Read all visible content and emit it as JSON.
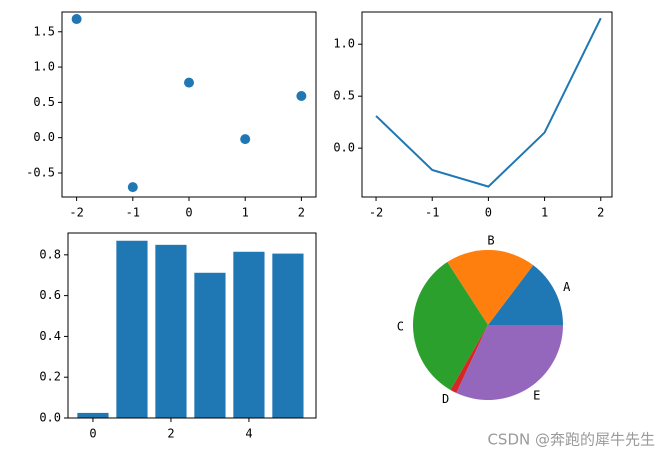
{
  "chart_data": [
    {
      "type": "scatter",
      "x": [
        -2,
        -1,
        0,
        1,
        2
      ],
      "values": [
        1.68,
        -0.7,
        0.78,
        -0.02,
        0.59
      ],
      "color": "#1f77b4",
      "xlim": [
        -2.26,
        2.26
      ],
      "ylim": [
        -0.84,
        1.78
      ],
      "xticks": [
        -2,
        -1,
        0,
        1,
        2
      ],
      "yticks": [
        -0.5,
        {
          "value": 0,
          "label": "0.0"
        },
        0.5,
        {
          "value": 1,
          "label": "1.0"
        },
        1.5
      ]
    },
    {
      "type": "line",
      "x": [
        -2,
        -1,
        0,
        1,
        2
      ],
      "values": [
        0.31,
        -0.21,
        -0.37,
        0.15,
        1.25
      ],
      "color": "#1f77b4",
      "xlim": [
        -2.25,
        2.2
      ],
      "ylim": [
        -0.47,
        1.31
      ],
      "xticks": [
        -2,
        -1,
        0,
        1,
        2
      ],
      "yticks": [
        {
          "value": 0,
          "label": "0.0"
        },
        0.5,
        {
          "value": 1,
          "label": "1.0"
        }
      ]
    },
    {
      "type": "bar",
      "x": [
        0,
        1,
        2,
        3,
        4,
        5
      ],
      "values": [
        0.025,
        0.869,
        0.849,
        0.712,
        0.815,
        0.806
      ],
      "color": "#1f77b4",
      "xlim": [
        -0.64,
        5.72
      ],
      "ylim": [
        0,
        0.907
      ],
      "xticks": [
        0,
        2,
        4
      ],
      "yticks": [
        {
          "value": 0,
          "label": "0.0"
        },
        0.2,
        0.4,
        0.6,
        0.8
      ]
    },
    {
      "type": "pie",
      "categories": [
        "A",
        "B",
        "C",
        "D",
        "E"
      ],
      "values": [
        14.7,
        19.4,
        32.5,
        1.4,
        31.9
      ],
      "colors": [
        "#1f77b4",
        "#ff7f0e",
        "#2ca02c",
        "#d62728",
        "#9467bd"
      ]
    }
  ],
  "watermark": "CSDN @奔跑的犀牛先生"
}
